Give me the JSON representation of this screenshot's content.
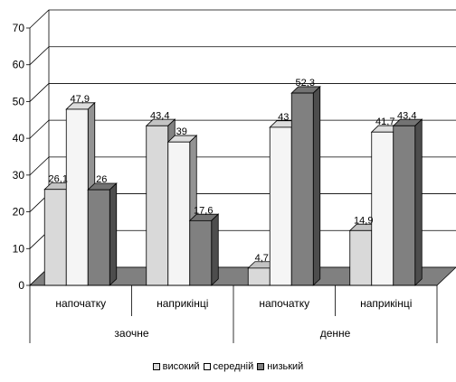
{
  "chart_data": {
    "type": "bar",
    "title": "",
    "xlabel": "",
    "ylabel": "",
    "ylim": [
      0,
      70
    ],
    "yticks": [
      0,
      10,
      20,
      30,
      40,
      50,
      60,
      70
    ],
    "grid": true,
    "legend_position": "bottom-center",
    "groups": [
      {
        "label": "заочне",
        "categories": [
          "напочатку",
          "наприкінці"
        ]
      },
      {
        "label": "денне",
        "categories": [
          "напочатку",
          "наприкінці"
        ]
      }
    ],
    "categories": [
      "напочатку",
      "наприкінці",
      "напочатку",
      "наприкінці"
    ],
    "series": [
      {
        "name": "високий",
        "color": "#d9d9d9",
        "values": [
          26.1,
          43.4,
          4.7,
          14.9
        ],
        "labels": [
          "26,1",
          "43,4",
          "4,7",
          "14,9"
        ]
      },
      {
        "name": "середній",
        "color": "#f5f5f5",
        "values": [
          47.9,
          39,
          43,
          41.7
        ],
        "labels": [
          "47,9",
          "39",
          "43",
          "41,7"
        ]
      },
      {
        "name": "низький",
        "color": "#808080",
        "values": [
          26,
          17.6,
          52.3,
          43.4
        ],
        "labels": [
          "26",
          "17,6",
          "52,3",
          "43,4"
        ]
      }
    ]
  }
}
